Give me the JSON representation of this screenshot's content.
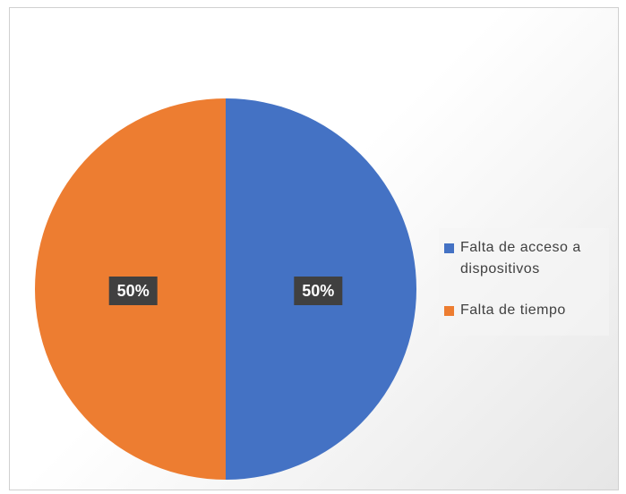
{
  "chart_data": {
    "type": "pie",
    "categories": [
      "Falta de acceso a dispositivos",
      "Falta de tiempo"
    ],
    "values": [
      50,
      50
    ],
    "value_labels": [
      "50%",
      "50%"
    ],
    "colors": [
      "#4472c4",
      "#ed7d31"
    ],
    "legend": "right"
  }
}
